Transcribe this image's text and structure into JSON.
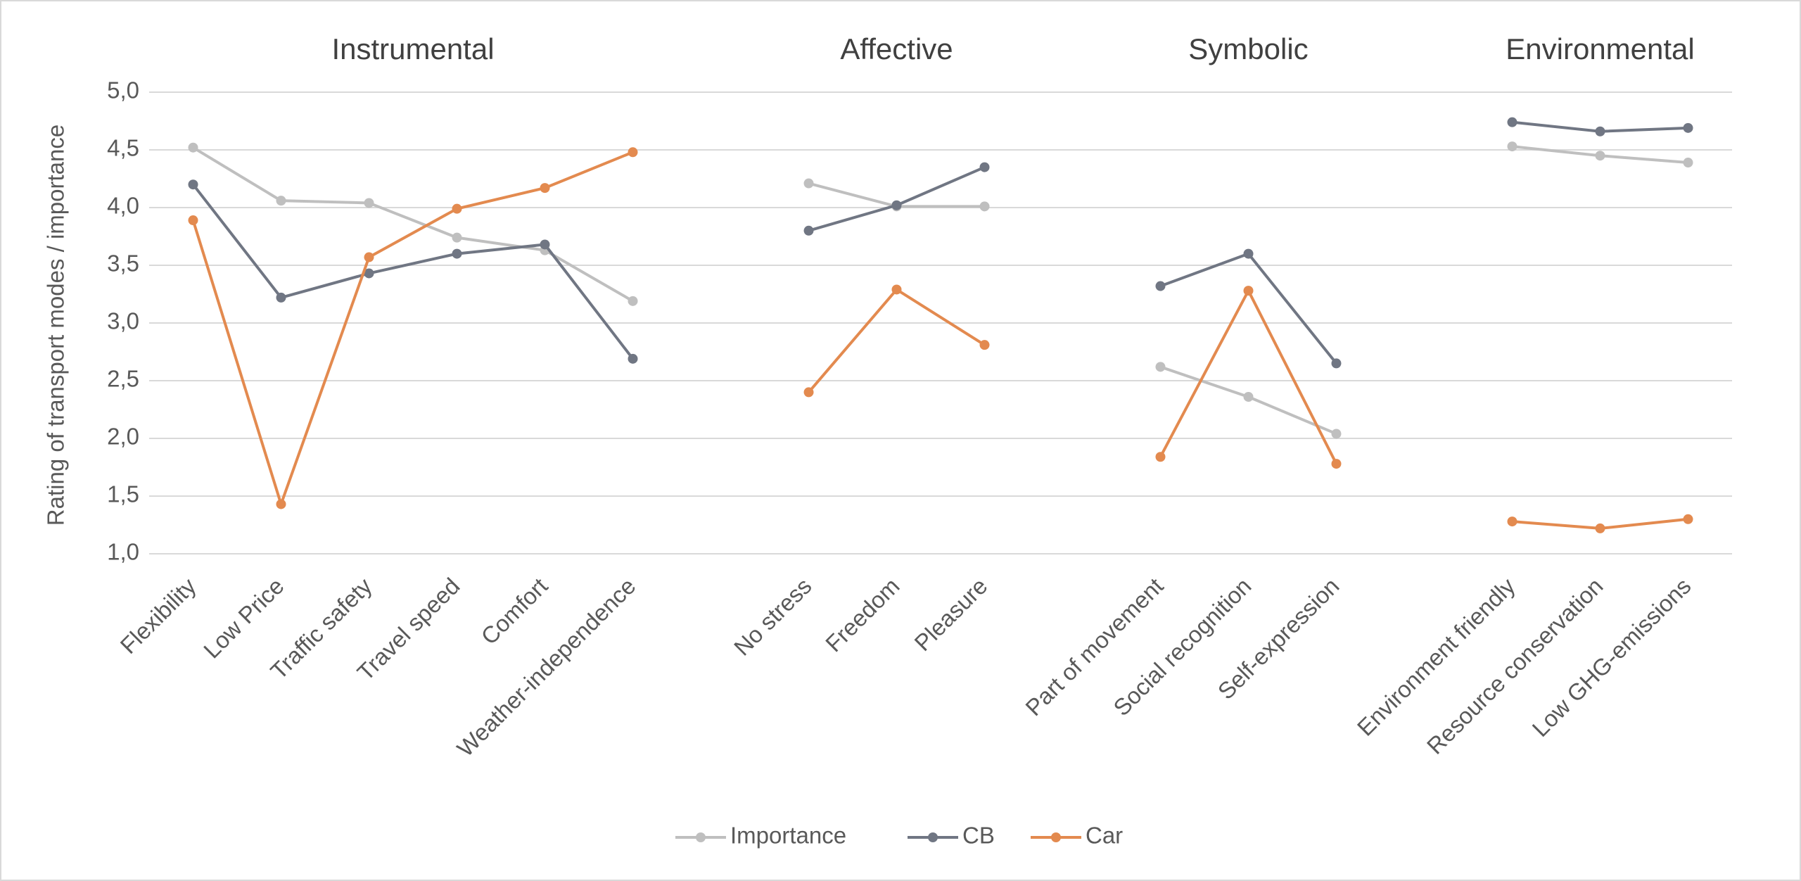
{
  "chart_data": {
    "type": "line",
    "y_label": "Rating of transport modes / importance",
    "group_labels": [
      "Instrumental",
      "Affective",
      "Symbolic",
      "Environmental"
    ],
    "categories": [
      "Flexibility",
      "Low Price",
      "Traffic safety",
      "Travel speed",
      "Comfort",
      "Weather-independence",
      null,
      "No stress",
      "Freedom",
      "Pleasure",
      null,
      "Part of movement",
      "Social recognition",
      "Self-expression",
      null,
      "Environment friendly",
      "Resource conservation",
      "Low GHG-emissions"
    ],
    "series": [
      {
        "name": "Importance",
        "color": "#bfbfbf",
        "values": [
          4.52,
          4.06,
          4.04,
          3.74,
          3.63,
          3.19,
          null,
          4.21,
          4.01,
          4.01,
          null,
          2.62,
          2.36,
          2.04,
          null,
          4.53,
          4.45,
          4.39
        ]
      },
      {
        "name": "CB",
        "color": "#707683",
        "values": [
          4.2,
          3.22,
          3.43,
          3.6,
          3.68,
          2.69,
          null,
          3.8,
          4.02,
          4.35,
          null,
          3.32,
          3.6,
          2.65,
          null,
          4.74,
          4.66,
          4.69
        ]
      },
      {
        "name": "Car",
        "color": "#e38a4f",
        "values": [
          3.89,
          1.43,
          3.57,
          3.99,
          4.17,
          4.48,
          null,
          2.4,
          3.29,
          2.81,
          null,
          1.84,
          3.28,
          1.78,
          null,
          1.28,
          1.22,
          1.3
        ]
      }
    ],
    "ylim": [
      1,
      5
    ],
    "yticks": [
      {
        "value": 1,
        "label": "1,0"
      },
      {
        "value": 1.5,
        "label": "1,5"
      },
      {
        "value": 2,
        "label": "2,0"
      },
      {
        "value": 2.5,
        "label": "2,5"
      },
      {
        "value": 3,
        "label": "3,0"
      },
      {
        "value": 3.5,
        "label": "3,5"
      },
      {
        "value": 4,
        "label": "4,0"
      },
      {
        "value": 4.5,
        "label": "4,5"
      },
      {
        "value": 5,
        "label": "5,0"
      }
    ],
    "grid": true,
    "legend": "bottom"
  }
}
